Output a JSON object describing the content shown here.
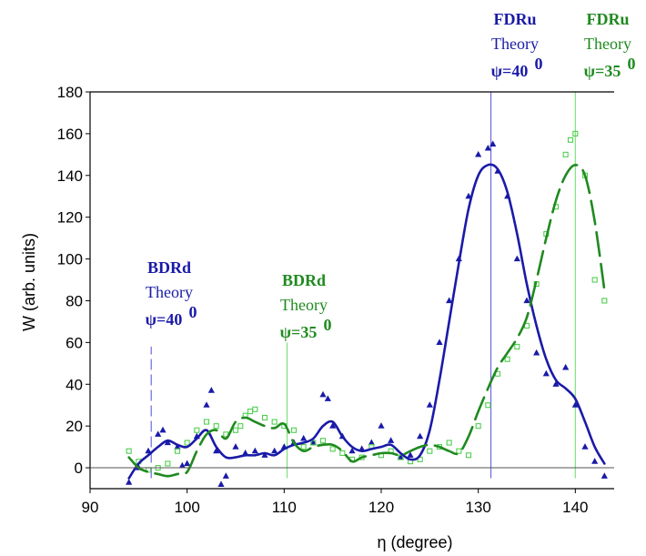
{
  "chart_data": {
    "type": "line",
    "xlabel": "η (degree)",
    "ylabel": "W (arb. units)",
    "xlim": [
      90,
      144
    ],
    "ylim": [
      -10,
      180
    ],
    "xticks": [
      90,
      100,
      110,
      120,
      130,
      140
    ],
    "yticks": [
      0,
      20,
      40,
      60,
      80,
      100,
      120,
      140,
      160,
      180
    ],
    "grid": false,
    "colors": {
      "blue": "#1a1aa8",
      "green_dark": "#1f8a1f",
      "green_light": "#7ee27e",
      "blue_light": "#6a6ae0"
    },
    "series": [
      {
        "style": "solid",
        "color": "#1a1aa8",
        "x": [
          94,
          95,
          96,
          97,
          98,
          99,
          100,
          101,
          102,
          103,
          104,
          105,
          106,
          107,
          108,
          109,
          110,
          111,
          112,
          113,
          114,
          115,
          116,
          117,
          118,
          119,
          120,
          121,
          122,
          123,
          124,
          125,
          126,
          127,
          128,
          129,
          130,
          131,
          132,
          133,
          134,
          135,
          136,
          137,
          138,
          139,
          140,
          141,
          142,
          143
        ],
        "y": [
          -5,
          2,
          6,
          10,
          13,
          11,
          10,
          14,
          18,
          10,
          5,
          5,
          6,
          6,
          7,
          6,
          9,
          11,
          12,
          14,
          20,
          22,
          15,
          10,
          8,
          9,
          10,
          11,
          7,
          4,
          6,
          18,
          42,
          70,
          98,
          124,
          140,
          145,
          143,
          132,
          112,
          88,
          68,
          52,
          42,
          38,
          33,
          22,
          10,
          2
        ]
      },
      {
        "style": "dashed",
        "color": "#1f8a1f",
        "x": [
          94,
          95,
          96,
          97,
          98,
          99,
          100,
          101,
          102,
          103,
          104,
          105,
          106,
          107,
          108,
          109,
          110,
          111,
          112,
          113,
          114,
          115,
          116,
          117,
          118,
          119,
          120,
          121,
          122,
          123,
          124,
          125,
          126,
          127,
          128,
          129,
          130,
          131,
          132,
          133,
          134,
          135,
          136,
          137,
          138,
          139,
          140,
          141,
          142,
          143
        ],
        "y": [
          5,
          0,
          -2,
          -3,
          -4,
          -3,
          -2,
          8,
          16,
          18,
          14,
          22,
          24,
          22,
          20,
          19,
          21,
          12,
          8,
          10,
          11,
          11,
          8,
          3,
          5,
          6,
          7,
          7,
          6,
          8,
          10,
          11,
          10,
          8,
          7,
          15,
          27,
          38,
          48,
          55,
          62,
          72,
          90,
          110,
          128,
          140,
          145,
          140,
          118,
          85
        ]
      }
    ],
    "scatter": [
      {
        "marker": "triangle",
        "color": "#1a1aa8",
        "x": [
          94,
          95,
          96,
          97,
          97.5,
          98,
          99,
          99.5,
          100,
          101,
          102,
          102.5,
          103,
          103.5,
          104,
          105,
          106,
          107,
          108,
          109,
          110,
          111,
          112,
          113,
          114,
          114.5,
          115,
          116,
          117,
          118,
          119,
          120,
          121,
          122,
          123,
          124,
          125,
          126,
          127,
          128,
          129,
          130,
          131,
          131.5,
          132,
          133,
          134,
          135,
          136,
          137,
          138,
          139,
          140,
          141,
          142,
          143
        ],
        "y": [
          -7,
          0,
          8,
          16,
          18,
          12,
          10,
          1,
          2,
          15,
          30,
          37,
          8,
          -8,
          -4,
          10,
          7,
          8,
          6,
          8,
          10,
          12,
          14,
          12,
          35,
          33,
          20,
          15,
          8,
          9,
          12,
          20,
          13,
          5,
          6,
          15,
          30,
          60,
          80,
          100,
          130,
          150,
          153,
          155,
          142,
          130,
          100,
          80,
          55,
          45,
          40,
          48,
          30,
          10,
          3,
          -4
        ]
      },
      {
        "marker": "square",
        "color": "#4fcf4f",
        "x": [
          94,
          95,
          96,
          97,
          98,
          99,
          100,
          101,
          102,
          103,
          104,
          105,
          105.5,
          106,
          106.5,
          107,
          108,
          109,
          110,
          111,
          112,
          113,
          114,
          115,
          116,
          117,
          118,
          119,
          120,
          121,
          122,
          123,
          124,
          125,
          126,
          127,
          128,
          129,
          130,
          131,
          132,
          133,
          134,
          135,
          136,
          137,
          138,
          139,
          139.5,
          140,
          141,
          142,
          143
        ],
        "y": [
          8,
          3,
          -1,
          0,
          2,
          8,
          12,
          18,
          22,
          20,
          16,
          18,
          20,
          25,
          27,
          28,
          24,
          22,
          20,
          18,
          10,
          12,
          13,
          9,
          7,
          4,
          5,
          10,
          6,
          8,
          5,
          3,
          4,
          8,
          10,
          12,
          8,
          6,
          20,
          30,
          45,
          52,
          58,
          68,
          88,
          112,
          125,
          150,
          157,
          160,
          140,
          90,
          80
        ]
      }
    ],
    "reference_lines": [
      {
        "x": 96.3,
        "color": "#6a6ae0",
        "style": "dashed",
        "from": -5,
        "to": 58
      },
      {
        "x": 110.3,
        "color": "#7ee27e",
        "style": "solid",
        "from": -5,
        "to": 60
      },
      {
        "x": 131.3,
        "color": "#6a6ae0",
        "style": "solid",
        "from": -5,
        "to": 180
      },
      {
        "x": 140.0,
        "color": "#7ee27e",
        "style": "solid",
        "from": -5,
        "to": 180
      }
    ],
    "annotations": [
      {
        "lines": [
          "BDRd",
          "Theory",
          "ψ=40",
          "0"
        ],
        "color": "#1a1aa8",
        "anchor_x": 96.3
      },
      {
        "lines": [
          "BDRd",
          "Theory",
          "ψ=35",
          "0"
        ],
        "color": "#1f8a1f",
        "anchor_x": 110.3
      },
      {
        "lines": [
          "FDRu",
          "Theory",
          "ψ=40",
          "0"
        ],
        "color": "#1a1aa8",
        "anchor_x": 131.3
      },
      {
        "lines": [
          "FDRu",
          "Theory",
          "ψ=35",
          "0"
        ],
        "color": "#1f8a1f",
        "anchor_x": 140.0
      }
    ]
  }
}
